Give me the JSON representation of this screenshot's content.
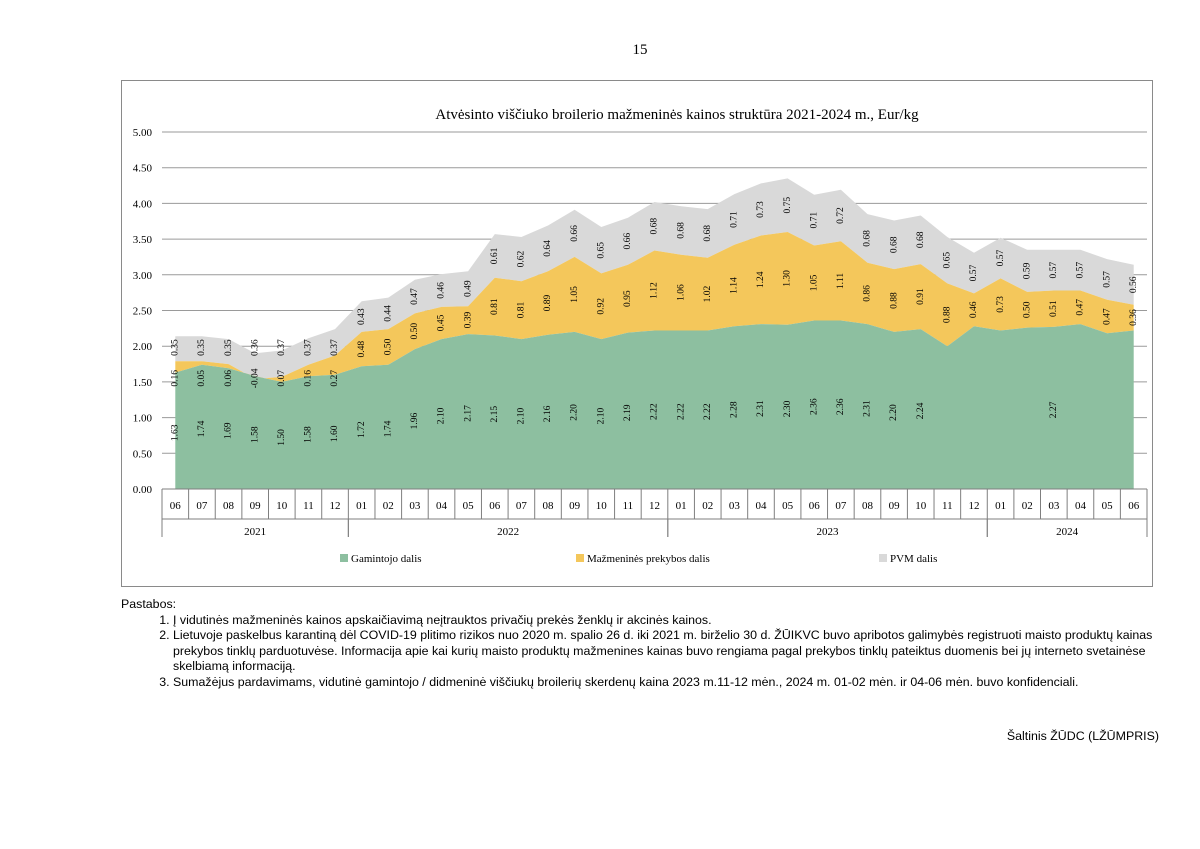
{
  "page_number": "15",
  "chart_data": {
    "type": "area",
    "stacked": true,
    "title": "Atvėsinto viščiuko broilerio mažmeninės kainos struktūra 2021-2024 m., Eur/kg",
    "ylim": [
      0,
      5
    ],
    "yticks": [
      "0.00",
      "0.50",
      "1.00",
      "1.50",
      "2.00",
      "2.50",
      "3.00",
      "3.50",
      "4.00",
      "4.50",
      "5.00"
    ],
    "months": [
      "06",
      "07",
      "08",
      "09",
      "10",
      "11",
      "12",
      "01",
      "02",
      "03",
      "04",
      "05",
      "06",
      "07",
      "08",
      "09",
      "10",
      "11",
      "12",
      "01",
      "02",
      "03",
      "04",
      "05",
      "06",
      "07",
      "08",
      "09",
      "10",
      "11",
      "12",
      "01",
      "02",
      "03",
      "04",
      "05",
      "06"
    ],
    "years": [
      {
        "label": "2021",
        "start": 0,
        "end": 6
      },
      {
        "label": "2022",
        "start": 7,
        "end": 18
      },
      {
        "label": "2023",
        "start": 19,
        "end": 30
      },
      {
        "label": "2024",
        "start": 31,
        "end": 36
      }
    ],
    "series": [
      {
        "name": "Gamintojo dalis",
        "color": "#8dbfa0",
        "values": [
          1.63,
          1.74,
          1.69,
          1.58,
          1.5,
          1.58,
          1.6,
          1.72,
          1.74,
          1.96,
          2.1,
          2.17,
          2.15,
          2.1,
          2.16,
          2.2,
          2.1,
          2.19,
          2.22,
          2.22,
          2.22,
          2.28,
          2.31,
          2.3,
          2.36,
          2.36,
          2.31,
          2.2,
          2.24,
          2.0,
          2.28,
          2.22,
          2.26,
          2.27,
          2.31,
          2.18,
          2.22
        ],
        "labels": [
          "1.63",
          "1.74",
          "1.69",
          "1.58",
          "1.50",
          "1.58",
          "1.60",
          "1.72",
          "1.74",
          "1.96",
          "2.10",
          "2.17",
          "2.15",
          "2.10",
          "2.16",
          "2.20",
          "2.10",
          "2.19",
          "2.22",
          "2.22",
          "2.22",
          "2.28",
          "2.31",
          "2.30",
          "2.36",
          "2.36",
          "2.31",
          "2.20",
          "2.24",
          "",
          "",
          "",
          "",
          "2.27",
          "",
          "",
          ""
        ]
      },
      {
        "name": "Mažmeninės prekybos dalis",
        "color": "#f4c75b",
        "values": [
          0.16,
          0.05,
          0.06,
          -0.04,
          0.07,
          0.16,
          0.27,
          0.48,
          0.5,
          0.5,
          0.45,
          0.39,
          0.81,
          0.81,
          0.89,
          1.05,
          0.92,
          0.95,
          1.12,
          1.06,
          1.02,
          1.14,
          1.24,
          1.3,
          1.05,
          1.11,
          0.86,
          0.88,
          0.91,
          0.88,
          0.46,
          0.73,
          0.5,
          0.51,
          0.47,
          0.47,
          0.36
        ],
        "labels": [
          "0.16",
          "0.05",
          "0.06",
          "-0.04",
          "0.07",
          "0.16",
          "0.27",
          "0.48",
          "0.50",
          "0.50",
          "0.45",
          "0.39",
          "0.81",
          "0.81",
          "0.89",
          "1.05",
          "0.92",
          "0.95",
          "1.12",
          "1.06",
          "1.02",
          "1.14",
          "1.24",
          "1.30",
          "1.05",
          "1.11",
          "0.86",
          "0.88",
          "0.91",
          "0.88",
          "0.46",
          "0.73",
          "0.50",
          "0.51",
          "0.47",
          "0.47",
          "0.36"
        ]
      },
      {
        "name": "PVM dalis",
        "color": "#d9d9d9",
        "values": [
          0.35,
          0.35,
          0.35,
          0.36,
          0.37,
          0.37,
          0.37,
          0.43,
          0.44,
          0.47,
          0.46,
          0.49,
          0.61,
          0.62,
          0.64,
          0.66,
          0.65,
          0.66,
          0.68,
          0.68,
          0.68,
          0.71,
          0.73,
          0.75,
          0.71,
          0.72,
          0.68,
          0.68,
          0.68,
          0.65,
          0.57,
          0.57,
          0.59,
          0.57,
          0.57,
          0.57,
          0.56
        ],
        "labels": [
          "0.35",
          "0.35",
          "0.35",
          "0.36",
          "0.37",
          "0.37",
          "0.37",
          "0.43",
          "0.44",
          "0.47",
          "0.46",
          "0.49",
          "0.61",
          "0.62",
          "0.64",
          "0.66",
          "0.65",
          "0.66",
          "0.68",
          "0.68",
          "0.68",
          "0.71",
          "0.73",
          "0.75",
          "0.71",
          "0.72",
          "0.68",
          "0.68",
          "0.68",
          "0.65",
          "0.57",
          "0.57",
          "0.59",
          "0.57",
          "0.57",
          "0.57",
          "0.56"
        ]
      }
    ],
    "legend_position": "bottom"
  },
  "notes": {
    "heading": "Pastabos:",
    "items": [
      "Į vidutinės mažmeninės kainos apskaičiavimą neįtrauktos privačių prekės ženklų ir akcinės kainos.",
      "Lietuvoje paskelbus karantiną dėl COVID-19 plitimo rizikos nuo 2020 m. spalio 26 d. iki 2021 m. birželio 30 d. ŽŪIKVC buvo apribotos galimybės registruoti maisto produktų kainas prekybos tinklų parduotuvėse. Informacija apie kai kurių maisto produktų mažmenines kainas buvo rengiama pagal prekybos tinklų pateiktus duomenis bei jų interneto svetainėse skelbiamą informaciją.",
      "Sumažėjus pardavimams, vidutinė gamintojo / didmeninė viščiukų broilerių skerdenų kaina 2023 m.11-12 mėn., 2024 m. 01-02 mėn. ir 04-06 mėn. buvo konfidenciali."
    ]
  },
  "source": "Šaltinis ŽŪDC (LŽŪMPRIS)"
}
